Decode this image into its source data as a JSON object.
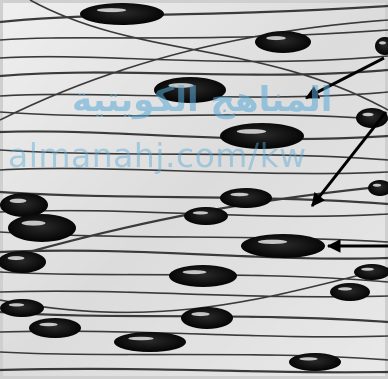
{
  "watermark": {
    "arabic_text": "المناهج الكويتية",
    "latin_text": "almanahj.com/kw",
    "color": "#5aa9d6"
  },
  "colors": {
    "background": "#e6e6e6",
    "fiber": "#3a3a3a",
    "droplet": "#111111",
    "arrow": "#000000"
  }
}
